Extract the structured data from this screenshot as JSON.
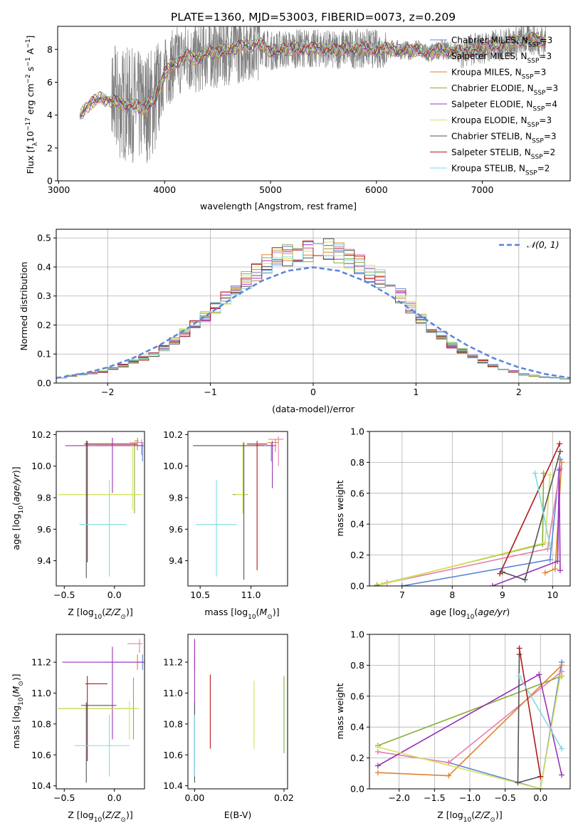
{
  "figure": {
    "title": "PLATE=1360, MJD=53003, FIBERID=0073, z=0.209"
  },
  "models": [
    {
      "key": "chab_miles",
      "color": "#5B84DA"
    },
    {
      "key": "salp_miles",
      "color": "#E57FB0"
    },
    {
      "key": "krou_miles",
      "color": "#E0822E"
    },
    {
      "key": "chab_elodie",
      "color": "#86AF3A"
    },
    {
      "key": "salp_elodie",
      "color": "#9A34B8"
    },
    {
      "key": "krou_elodie",
      "color": "#D6E25A"
    },
    {
      "key": "chab_stelib",
      "color": "#555555"
    },
    {
      "key": "salp_stelib",
      "color": "#B21A1A"
    },
    {
      "key": "krou_stelib",
      "color": "#7FD9E0"
    }
  ],
  "chart_data": [
    {
      "type": "line",
      "xlabel": "wavelength [Angstrom, rest frame]",
      "ylabel": "Flux [f",
      "xlim": [
        2990,
        7830
      ],
      "ylim": [
        0,
        9.4
      ],
      "xticks": [
        3000,
        4000,
        5000,
        6000,
        7000
      ],
      "yticks": [
        0,
        2,
        4,
        6,
        8
      ],
      "legend_position": "top-right",
      "legend": [
        "Chabrier MILES, N",
        "Salpeter MILES, N",
        "Kroupa MILES, N",
        "Chabrier ELODIE, N",
        "Salpeter ELODIE, N",
        "Kroupa ELODIE, N",
        "Chabrier STELIB, N",
        "Salpeter STELIB, N",
        "Kroupa STELIB, N"
      ],
      "legend_nssp": [
        "3",
        "3",
        "3",
        "3",
        "4",
        "3",
        "3",
        "2",
        "2"
      ],
      "continuum": {
        "x": [
          3200,
          3300,
          3400,
          3500,
          3600,
          3700,
          3800,
          3900,
          4000,
          4100,
          4200,
          4300,
          4400,
          4500,
          4600,
          4700,
          4800,
          4900,
          5000,
          5100,
          5200,
          5300,
          5400,
          5500,
          5600,
          5700,
          5800,
          5900,
          6000,
          6100,
          6200,
          6300,
          6400,
          6500,
          6600,
          6700,
          6800,
          6900,
          7000,
          7100,
          7200,
          7300,
          7400,
          7500,
          7600
        ],
        "y": [
          4.0,
          4.7,
          5.1,
          4.8,
          4.7,
          4.6,
          4.4,
          4.9,
          6.5,
          7.2,
          7.6,
          7.4,
          7.8,
          7.8,
          8.0,
          8.1,
          8.3,
          8.3,
          7.9,
          8.0,
          8.0,
          8.1,
          8.0,
          8.1,
          7.9,
          8.1,
          8.0,
          8.1,
          8.0,
          8.0,
          8.0,
          7.9,
          8.0,
          7.7,
          8.0,
          7.9,
          7.8,
          8.0,
          8.1,
          8.2,
          8.3,
          8.4,
          8.6,
          8.6,
          8.5
        ]
      }
    },
    {
      "type": "line",
      "xlabel": "(data-model)/error",
      "ylabel": "Normed distribution",
      "xlim": [
        -2.5,
        2.5
      ],
      "ylim": [
        0,
        0.53
      ],
      "xticks": [
        -2,
        -1,
        0,
        1,
        2
      ],
      "yticks": [
        0.0,
        0.1,
        0.2,
        0.3,
        0.4,
        0.5
      ],
      "legend": [
        "𝒩(0, 1)"
      ],
      "legend_position": "top-right",
      "grid": true,
      "histogram_bin_width": 0.1,
      "histogram_centers": [
        -2.45,
        -2.35,
        -2.25,
        -2.15,
        -2.05,
        -1.95,
        -1.85,
        -1.75,
        -1.65,
        -1.55,
        -1.45,
        -1.35,
        -1.25,
        -1.15,
        -1.05,
        -0.95,
        -0.85,
        -0.75,
        -0.65,
        -0.55,
        -0.45,
        -0.35,
        -0.25,
        -0.15,
        -0.05,
        0.05,
        0.15,
        0.25,
        0.35,
        0.45,
        0.55,
        0.65,
        0.75,
        0.85,
        0.95,
        1.05,
        1.15,
        1.25,
        1.35,
        1.45,
        1.55,
        1.65,
        1.75,
        1.85,
        1.95,
        2.05,
        2.15,
        2.25,
        2.35,
        2.45
      ],
      "histogram_mean": [
        0.02,
        0.025,
        0.03,
        0.035,
        0.04,
        0.05,
        0.06,
        0.075,
        0.085,
        0.1,
        0.12,
        0.145,
        0.175,
        0.205,
        0.23,
        0.26,
        0.29,
        0.315,
        0.355,
        0.38,
        0.41,
        0.43,
        0.44,
        0.445,
        0.45,
        0.455,
        0.46,
        0.45,
        0.43,
        0.41,
        0.38,
        0.36,
        0.33,
        0.3,
        0.26,
        0.225,
        0.19,
        0.165,
        0.13,
        0.11,
        0.09,
        0.075,
        0.06,
        0.05,
        0.04,
        0.03,
        0.025,
        0.02,
        0.018,
        0.015
      ],
      "normal_x": [
        -2.5,
        -2.25,
        -2.0,
        -1.75,
        -1.5,
        -1.25,
        -1.0,
        -0.75,
        -0.5,
        -0.25,
        0.0,
        0.25,
        0.5,
        0.75,
        1.0,
        1.25,
        1.5,
        1.75,
        2.0,
        2.25,
        2.5
      ],
      "normal_y": [
        0.0175,
        0.0317,
        0.054,
        0.0863,
        0.1295,
        0.1826,
        0.242,
        0.3011,
        0.3521,
        0.3867,
        0.3989,
        0.3867,
        0.3521,
        0.3011,
        0.242,
        0.1826,
        0.1295,
        0.0863,
        0.054,
        0.0317,
        0.0175
      ]
    },
    {
      "type": "scatter",
      "panel": "age_vs_Z",
      "xlabel": "Z [log",
      "ylabel": "age  [log",
      "xlim": [
        -0.58,
        0.3
      ],
      "ylim": [
        9.24,
        10.22
      ],
      "xticks": [
        -0.5,
        0.0
      ],
      "yticks": [
        9.4,
        9.6,
        9.8,
        10.0,
        10.2
      ],
      "series": [
        {
          "x": 0.28,
          "y": 10.13,
          "xerr": [
            0.45,
            0.02
          ],
          "yerr": [
            0.1,
            0.02
          ]
        },
        {
          "x": 0.27,
          "y": 10.15,
          "xerr": [
            0.12,
            0.02
          ],
          "yerr": [
            0.08,
            0.02
          ]
        },
        {
          "x": 0.23,
          "y": 10.16,
          "xerr": [
            0.03,
            0.01
          ],
          "yerr": [
            0.06,
            0.02
          ]
        },
        {
          "x": 0.2,
          "y": 9.82,
          "xerr": [
            0.75,
            0.05
          ],
          "yerr": [
            0.12,
            0.33
          ]
        },
        {
          "x": -0.02,
          "y": 10.13,
          "xerr": [
            0.47,
            0.3
          ],
          "yerr": [
            0.3,
            0.05
          ]
        },
        {
          "x": 0.18,
          "y": 9.82,
          "xerr": [
            0.74,
            0.1
          ],
          "yerr": [
            0.1,
            0.33
          ]
        },
        {
          "x": -0.28,
          "y": 10.14,
          "xerr": [
            0.02,
            0.5
          ],
          "yerr": [
            0.85,
            0.02
          ]
        },
        {
          "x": -0.27,
          "y": 10.14,
          "xerr": [
            0.02,
            0.5
          ],
          "yerr": [
            0.75,
            0.02
          ]
        },
        {
          "x": -0.05,
          "y": 9.63,
          "xerr": [
            0.3,
            0.17
          ],
          "yerr": [
            0.33,
            0.28
          ]
        }
      ]
    },
    {
      "type": "scatter",
      "panel": "age_vs_mass",
      "xlabel": "mass [log",
      "ylabel": "",
      "xlim": [
        10.38,
        11.36
      ],
      "ylim": [
        9.24,
        10.22
      ],
      "xticks": [
        10.5,
        11.0
      ],
      "yticks": [
        9.4,
        9.6,
        9.8,
        10.0,
        10.2
      ],
      "series": [
        {
          "x": 11.2,
          "y": 10.13,
          "xerr": [
            0.2,
            0.05
          ],
          "yerr": [
            0.1,
            0.02
          ]
        },
        {
          "x": 11.27,
          "y": 10.17,
          "xerr": [
            0.1,
            0.05
          ],
          "yerr": [
            0.17,
            0.02
          ]
        },
        {
          "x": 11.24,
          "y": 10.15,
          "xerr": [
            0.08,
            0.03
          ],
          "yerr": [
            0.06,
            0.02
          ]
        },
        {
          "x": 10.92,
          "y": 9.82,
          "xerr": [
            0.1,
            0.05
          ],
          "yerr": [
            0.12,
            0.33
          ]
        },
        {
          "x": 11.21,
          "y": 10.13,
          "xerr": [
            0.06,
            0.02
          ],
          "yerr": [
            0.27,
            0.03
          ]
        },
        {
          "x": 10.92,
          "y": 9.82,
          "xerr": [
            0.07,
            0.04
          ],
          "yerr": [
            0.12,
            0.33
          ]
        },
        {
          "x": 10.93,
          "y": 10.13,
          "xerr": [
            0.5,
            0.2
          ],
          "yerr": [
            0.85,
            0.02
          ]
        },
        {
          "x": 11.06,
          "y": 10.14,
          "xerr": [
            0.1,
            0.1
          ],
          "yerr": [
            0.8,
            0.02
          ]
        },
        {
          "x": 10.66,
          "y": 9.63,
          "xerr": [
            0.2,
            0.2
          ],
          "yerr": [
            0.33,
            0.28
          ]
        }
      ]
    },
    {
      "type": "line",
      "panel": "massweight_vs_age",
      "xlabel": "age  [log",
      "ylabel": "mass weight",
      "xlim": [
        6.35,
        10.35
      ],
      "ylim": [
        0,
        1.0
      ],
      "xticks": [
        7,
        8,
        9,
        10
      ],
      "yticks": [
        0.0,
        0.2,
        0.4,
        0.6,
        0.8,
        1.0
      ],
      "grid": true,
      "series": [
        {
          "x": [
            7.0,
            9.95,
            10.15
          ],
          "y": [
            0.0,
            0.17,
            0.82
          ]
        },
        {
          "x": [
            6.7,
            9.9,
            10.15
          ],
          "y": [
            0.02,
            0.24,
            0.76
          ]
        },
        {
          "x": [
            9.85,
            10.05,
            10.18
          ],
          "y": [
            0.085,
            0.11,
            0.8
          ]
        },
        {
          "x": [
            6.5,
            9.8,
            9.82
          ],
          "y": [
            0.005,
            0.27,
            0.73
          ]
        },
        {
          "x": [
            8.8,
            10.1,
            10.13,
            10.15
          ],
          "y": [
            0.0,
            0.16,
            0.75,
            0.1
          ]
        },
        {
          "x": [
            6.6,
            9.85,
            9.95
          ],
          "y": [
            0.01,
            0.28,
            0.72
          ]
        },
        {
          "x": [
            9.0,
            9.45,
            10.15
          ],
          "y": [
            0.09,
            0.04,
            0.87
          ]
        },
        {
          "x": [
            8.95,
            10.14
          ],
          "y": [
            0.08,
            0.92
          ]
        },
        {
          "x": [
            9.65,
            9.95
          ],
          "y": [
            0.73,
            0.26
          ]
        }
      ]
    },
    {
      "type": "scatter",
      "panel": "mass_vs_Z",
      "xlabel": "Z [log",
      "ylabel": "mass [log",
      "xlim": [
        -0.58,
        0.3
      ],
      "ylim": [
        10.38,
        11.38
      ],
      "xticks": [
        -0.5,
        0.0
      ],
      "yticks": [
        10.4,
        10.6,
        10.8,
        11.0,
        11.2
      ],
      "series": [
        {
          "x": 0.28,
          "y": 11.2,
          "xerr": [
            0.4,
            0.02
          ],
          "yerr": [
            0.05,
            0.05
          ]
        },
        {
          "x": 0.25,
          "y": 11.32,
          "xerr": [
            0.12,
            0.03
          ],
          "yerr": [
            0.06,
            0.03
          ]
        },
        {
          "x": 0.23,
          "y": 11.2,
          "xerr": [
            0.03,
            0.02
          ],
          "yerr": [
            0.05,
            0.05
          ]
        },
        {
          "x": 0.19,
          "y": 10.9,
          "xerr": [
            0.75,
            0.03
          ],
          "yerr": [
            0.2,
            0.2
          ]
        },
        {
          "x": -0.02,
          "y": 11.2,
          "xerr": [
            0.5,
            0.32
          ],
          "yerr": [
            0.5,
            0.1
          ]
        },
        {
          "x": 0.15,
          "y": 10.9,
          "xerr": [
            0.7,
            0.1
          ],
          "yerr": [
            0.2,
            0.05
          ]
        },
        {
          "x": -0.28,
          "y": 10.92,
          "xerr": [
            0.05,
            0.3
          ],
          "yerr": [
            0.5,
            0.02
          ]
        },
        {
          "x": -0.27,
          "y": 11.06,
          "xerr": [
            0.02,
            0.2
          ],
          "yerr": [
            0.5,
            0.05
          ]
        },
        {
          "x": -0.05,
          "y": 10.66,
          "xerr": [
            0.35,
            0.2
          ],
          "yerr": [
            0.2,
            0.2
          ]
        }
      ]
    },
    {
      "type": "scatter",
      "panel": "mass_vs_ebv",
      "xlabel": "E(B-V)",
      "ylabel": "",
      "xlim": [
        -0.0015,
        0.0208
      ],
      "ylim": [
        10.38,
        11.38
      ],
      "xticks": [
        0.0,
        0.02
      ],
      "xtick_labels": [
        "0.00",
        "0.02"
      ],
      "yticks": [
        10.4,
        10.6,
        10.8,
        11.0,
        11.2
      ],
      "series": [
        {
          "x": 0.0,
          "y": 11.2,
          "yerr": [
            0.05,
            0.05
          ]
        },
        {
          "x": 0.0,
          "y": 11.3,
          "yerr": [
            0.05,
            0.05
          ]
        },
        {
          "x": 0.0,
          "y": 11.2,
          "yerr": [
            0.05,
            0.05
          ]
        },
        {
          "x": 0.02,
          "y": 10.86,
          "yerr": [
            0.25,
            0.25
          ]
        },
        {
          "x": 0.0,
          "y": 11.05,
          "yerr": [
            0.6,
            0.3
          ]
        },
        {
          "x": 0.0133,
          "y": 10.86,
          "yerr": [
            0.22,
            0.22
          ]
        },
        {
          "x": 0.0,
          "y": 10.92,
          "yerr": [
            0.5,
            0.02
          ]
        },
        {
          "x": 0.0035,
          "y": 10.88,
          "yerr": [
            0.24,
            0.24
          ]
        },
        {
          "x": 0.0,
          "y": 10.66,
          "yerr": [
            0.2,
            0.2
          ]
        }
      ]
    },
    {
      "type": "line",
      "panel": "massweight_vs_Z",
      "xlabel": "Z [log",
      "ylabel": "mass weight",
      "xlim": [
        -2.42,
        0.42
      ],
      "ylim": [
        0,
        1.0
      ],
      "xticks": [
        -2.0,
        -1.5,
        -1.0,
        -0.5,
        0.0
      ],
      "yticks": [
        0.0,
        0.2,
        0.4,
        0.6,
        0.8,
        1.0
      ],
      "grid": true,
      "series": [
        {
          "x": [
            -1.3,
            0.0,
            0.3
          ],
          "y": [
            0.17,
            0.0,
            0.82
          ]
        },
        {
          "x": [
            -2.3,
            -1.3,
            0.3
          ],
          "y": [
            0.24,
            0.17,
            0.76
          ]
        },
        {
          "x": [
            -2.3,
            -1.3,
            0.3
          ],
          "y": [
            0.105,
            0.085,
            0.8
          ]
        },
        {
          "x": [
            -2.3,
            0.3
          ],
          "y": [
            0.28,
            0.73
          ]
        },
        {
          "x": [
            -2.3,
            -0.02,
            0.3
          ],
          "y": [
            0.15,
            0.74,
            0.09
          ]
        },
        {
          "x": [
            -2.3,
            0.0,
            0.28
          ],
          "y": [
            0.27,
            0.0,
            0.73
          ]
        },
        {
          "x": [
            -0.3,
            -0.32,
            0.0
          ],
          "y": [
            0.87,
            0.04,
            0.08
          ]
        },
        {
          "x": [
            -0.3,
            0.0
          ],
          "y": [
            0.91,
            0.08
          ]
        },
        {
          "x": [
            -0.3,
            0.3
          ],
          "y": [
            0.73,
            0.26
          ]
        }
      ]
    }
  ]
}
